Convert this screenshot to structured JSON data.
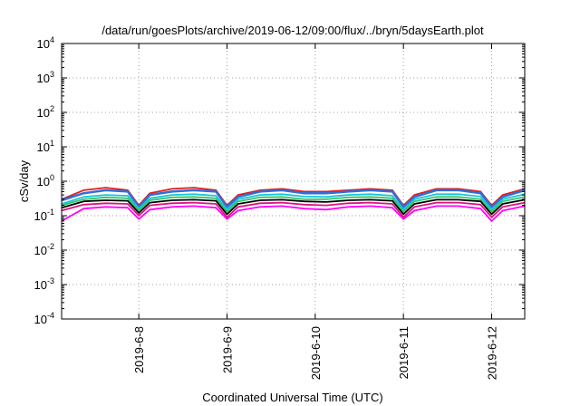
{
  "chart_data": {
    "type": "line",
    "title": "/data/run/goesPlots/archive/2019-06-12/09:00/flux/../bryn/5daysEarth.plot",
    "xlabel": "Coordinated Universal Time (UTC)",
    "ylabel": "cSv/day",
    "yscale": "log",
    "ylim": [
      0.0001,
      10000
    ],
    "xlim": [
      "2019-06-07 03:00",
      "2019-06-12 09:00"
    ],
    "grid": "dotted",
    "legend": "none",
    "y_ticks": [
      {
        "base": "10",
        "exp": "-4"
      },
      {
        "base": "10",
        "exp": "-3"
      },
      {
        "base": "10",
        "exp": "-2"
      },
      {
        "base": "10",
        "exp": "-1"
      },
      {
        "base": "10",
        "exp": "0"
      },
      {
        "base": "10",
        "exp": "1"
      },
      {
        "base": "10",
        "exp": "2"
      },
      {
        "base": "10",
        "exp": "3"
      },
      {
        "base": "10",
        "exp": "4"
      }
    ],
    "x_ticks": [
      "2019-6-8",
      "2019-6-9",
      "2019-6-10",
      "2019-6-11",
      "2019-6-12"
    ],
    "x": [
      "2019-06-07 03:00",
      "2019-06-07 09:00",
      "2019-06-07 15:00",
      "2019-06-07 21:00",
      "2019-06-08 00:00",
      "2019-06-08 03:00",
      "2019-06-08 09:00",
      "2019-06-08 15:00",
      "2019-06-08 21:00",
      "2019-06-09 00:00",
      "2019-06-09 03:00",
      "2019-06-09 09:00",
      "2019-06-09 15:00",
      "2019-06-09 21:00",
      "2019-06-10 03:00",
      "2019-06-10 09:00",
      "2019-06-10 15:00",
      "2019-06-10 21:00",
      "2019-06-11 00:00",
      "2019-06-11 03:00",
      "2019-06-11 09:00",
      "2019-06-11 15:00",
      "2019-06-11 21:00",
      "2019-06-12 00:00",
      "2019-06-12 03:00",
      "2019-06-12 09:00"
    ],
    "series": [
      {
        "color": "#e41a1c",
        "values": [
          0.3,
          0.55,
          0.65,
          0.55,
          0.2,
          0.45,
          0.6,
          0.65,
          0.55,
          0.2,
          0.4,
          0.55,
          0.6,
          0.5,
          0.5,
          0.55,
          0.6,
          0.55,
          0.2,
          0.4,
          0.6,
          0.6,
          0.5,
          0.2,
          0.4,
          0.6
        ]
      },
      {
        "color": "#2f6fd8",
        "values": [
          0.28,
          0.45,
          0.55,
          0.5,
          0.18,
          0.4,
          0.5,
          0.55,
          0.5,
          0.18,
          0.35,
          0.5,
          0.55,
          0.45,
          0.45,
          0.5,
          0.55,
          0.5,
          0.18,
          0.35,
          0.55,
          0.55,
          0.45,
          0.18,
          0.35,
          0.55
        ]
      },
      {
        "color": "#19c4d6",
        "values": [
          0.22,
          0.35,
          0.4,
          0.38,
          0.16,
          0.32,
          0.4,
          0.42,
          0.38,
          0.15,
          0.3,
          0.4,
          0.42,
          0.36,
          0.35,
          0.4,
          0.42,
          0.38,
          0.15,
          0.3,
          0.42,
          0.42,
          0.36,
          0.15,
          0.3,
          0.42
        ]
      },
      {
        "color": "#2fc46a",
        "values": [
          0.2,
          0.3,
          0.34,
          0.32,
          0.14,
          0.28,
          0.34,
          0.35,
          0.32,
          0.13,
          0.26,
          0.34,
          0.35,
          0.3,
          0.3,
          0.34,
          0.35,
          0.32,
          0.13,
          0.26,
          0.35,
          0.35,
          0.3,
          0.13,
          0.26,
          0.35
        ]
      },
      {
        "color": "#000000",
        "values": [
          0.17,
          0.26,
          0.28,
          0.27,
          0.12,
          0.24,
          0.28,
          0.29,
          0.27,
          0.11,
          0.22,
          0.28,
          0.29,
          0.26,
          0.25,
          0.28,
          0.29,
          0.27,
          0.11,
          0.22,
          0.29,
          0.29,
          0.26,
          0.11,
          0.22,
          0.29
        ]
      },
      {
        "color": "#e0117f",
        "values": [
          0.14,
          0.21,
          0.23,
          0.22,
          0.1,
          0.2,
          0.23,
          0.24,
          0.22,
          0.09,
          0.18,
          0.23,
          0.24,
          0.21,
          0.2,
          0.23,
          0.24,
          0.22,
          0.09,
          0.18,
          0.24,
          0.24,
          0.21,
          0.09,
          0.18,
          0.24
        ]
      },
      {
        "color": "#ff00ff",
        "values": [
          0.07,
          0.16,
          0.18,
          0.17,
          0.08,
          0.15,
          0.18,
          0.19,
          0.17,
          0.08,
          0.14,
          0.18,
          0.19,
          0.16,
          0.15,
          0.18,
          0.19,
          0.17,
          0.08,
          0.14,
          0.19,
          0.19,
          0.16,
          0.07,
          0.14,
          0.19
        ]
      }
    ]
  }
}
